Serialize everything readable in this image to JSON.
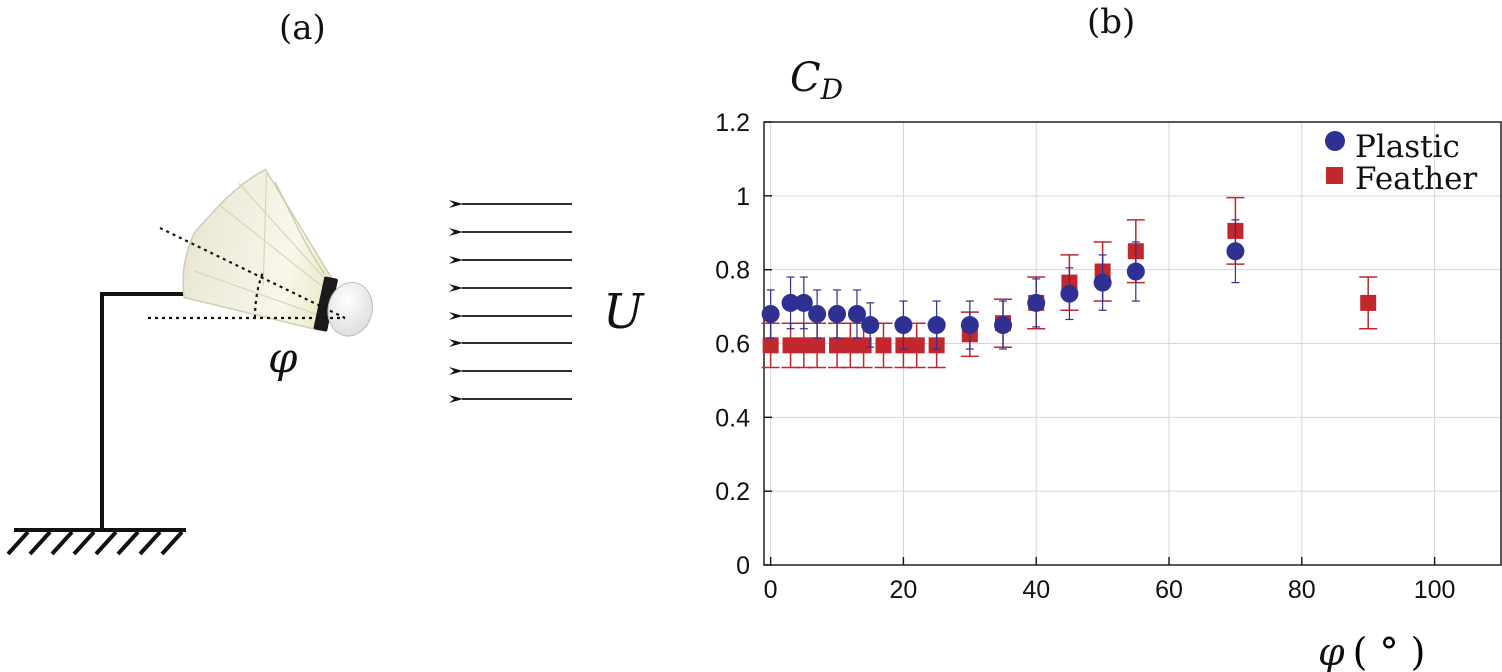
{
  "panels": {
    "a_label": "(a)",
    "b_label": "(b)"
  },
  "diagram": {
    "flow_symbol": "U",
    "angle_symbol": "φ",
    "icons": [
      "shuttlecock-icon",
      "mount-stand-icon",
      "ground-hatch-icon",
      "flow-arrow-icon"
    ],
    "colors": {
      "line": "#111111",
      "cork": "#f4f4f4",
      "band": "#1a1a1a",
      "feather": "#f2f1e2"
    }
  },
  "chart_data": {
    "type": "scatter",
    "ylabel_symbol": "C",
    "ylabel_subscript": "D",
    "xlabel_symbol": "φ",
    "xlabel_unit": "( ° )",
    "xlim": [
      -1,
      110
    ],
    "ylim": [
      0,
      1.2
    ],
    "xticks": [
      0,
      20,
      40,
      60,
      80,
      100
    ],
    "yticks": [
      0,
      0.2,
      0.4,
      0.6,
      0.8,
      1,
      1.2
    ],
    "ytick_labels": [
      "0",
      "0.2",
      "0.4",
      "0.6",
      "0.8",
      "1",
      "1.2"
    ],
    "grid": true,
    "legend_position": "top-right",
    "series": [
      {
        "name": "Plastic",
        "marker": "circle",
        "color": "#2e3192",
        "points": [
          {
            "x": 0,
            "y": 0.68,
            "err": 0.065
          },
          {
            "x": 3,
            "y": 0.71,
            "err": 0.07
          },
          {
            "x": 5,
            "y": 0.71,
            "err": 0.07
          },
          {
            "x": 7,
            "y": 0.68,
            "err": 0.065
          },
          {
            "x": 10,
            "y": 0.68,
            "err": 0.065
          },
          {
            "x": 13,
            "y": 0.68,
            "err": 0.065
          },
          {
            "x": 15,
            "y": 0.65,
            "err": 0.06
          },
          {
            "x": 20,
            "y": 0.65,
            "err": 0.065
          },
          {
            "x": 25,
            "y": 0.65,
            "err": 0.065
          },
          {
            "x": 30,
            "y": 0.65,
            "err": 0.065
          },
          {
            "x": 35,
            "y": 0.65,
            "err": 0.065
          },
          {
            "x": 40,
            "y": 0.71,
            "err": 0.065
          },
          {
            "x": 45,
            "y": 0.735,
            "err": 0.07
          },
          {
            "x": 50,
            "y": 0.765,
            "err": 0.075
          },
          {
            "x": 55,
            "y": 0.795,
            "err": 0.08
          },
          {
            "x": 70,
            "y": 0.85,
            "err": 0.085
          }
        ]
      },
      {
        "name": "Feather",
        "marker": "square",
        "color": "#c1272d",
        "points": [
          {
            "x": 0,
            "y": 0.595,
            "err": 0.06
          },
          {
            "x": 3,
            "y": 0.595,
            "err": 0.06
          },
          {
            "x": 5,
            "y": 0.595,
            "err": 0.06
          },
          {
            "x": 7,
            "y": 0.595,
            "err": 0.06
          },
          {
            "x": 10,
            "y": 0.595,
            "err": 0.06
          },
          {
            "x": 12,
            "y": 0.595,
            "err": 0.06
          },
          {
            "x": 14,
            "y": 0.595,
            "err": 0.06
          },
          {
            "x": 17,
            "y": 0.595,
            "err": 0.06
          },
          {
            "x": 20,
            "y": 0.595,
            "err": 0.06
          },
          {
            "x": 22,
            "y": 0.595,
            "err": 0.06
          },
          {
            "x": 25,
            "y": 0.595,
            "err": 0.06
          },
          {
            "x": 30,
            "y": 0.625,
            "err": 0.06
          },
          {
            "x": 35,
            "y": 0.655,
            "err": 0.065
          },
          {
            "x": 40,
            "y": 0.71,
            "err": 0.07
          },
          {
            "x": 45,
            "y": 0.765,
            "err": 0.075
          },
          {
            "x": 50,
            "y": 0.795,
            "err": 0.08
          },
          {
            "x": 55,
            "y": 0.85,
            "err": 0.085
          },
          {
            "x": 70,
            "y": 0.905,
            "err": 0.09
          },
          {
            "x": 90,
            "y": 0.71,
            "err": 0.07
          }
        ]
      }
    ]
  }
}
